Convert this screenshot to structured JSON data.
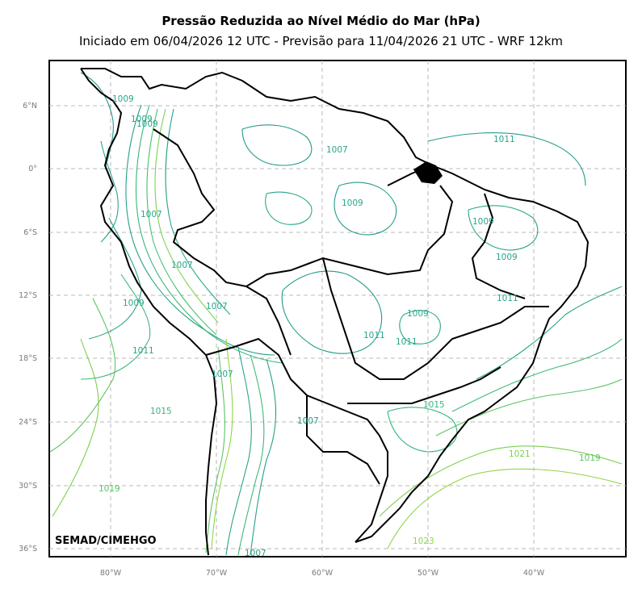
{
  "title": "Pressão Reduzida ao Nível Médio do Mar (hPa)",
  "subtitle": "Iniciado em 06/04/2026 12 UTC - Previsão para 11/04/2026 21 UTC - WRF 12km",
  "credit": "SEMAD/CIMEHGO",
  "lat_labels": [
    "6°N",
    "0°",
    "6°S",
    "12°S",
    "18°S",
    "24°S",
    "30°S",
    "36°S"
  ],
  "lon_labels": [
    "80°W",
    "70°W",
    "60°W",
    "50°W",
    "40°W"
  ],
  "isobar_labels": [
    {
      "text": "1009"
    },
    {
      "text": "1009"
    },
    {
      "text": "1007"
    },
    {
      "text": "1007"
    },
    {
      "text": "1007"
    },
    {
      "text": "1009"
    },
    {
      "text": "1011"
    },
    {
      "text": "1015"
    },
    {
      "text": "1019"
    },
    {
      "text": "1007"
    },
    {
      "text": "1009"
    },
    {
      "text": "1011"
    },
    {
      "text": "1009"
    },
    {
      "text": "1011"
    },
    {
      "text": "1009"
    },
    {
      "text": "1011"
    },
    {
      "text": "1009"
    },
    {
      "text": "1011"
    },
    {
      "text": "1015"
    },
    {
      "text": "1007"
    },
    {
      "text": "1021"
    },
    {
      "text": "1019"
    },
    {
      "text": "1023"
    },
    {
      "text": "1007"
    },
    {
      "text": "1009"
    },
    {
      "text": "1007"
    }
  ],
  "colors": {
    "isobar_low": "#1e9b8a",
    "isobar_mid": "#35b779",
    "isobar_high": "#90d743",
    "grid": "#b0b0b0",
    "border": "#000000"
  }
}
